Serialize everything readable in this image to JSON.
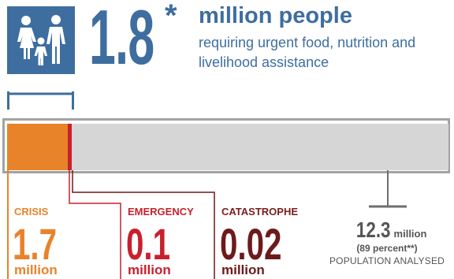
{
  "headline": {
    "number": "1.8",
    "asterisk": "*",
    "title": "million people",
    "subtitle": "requiring urgent food, nutrition and livelihood assistance"
  },
  "icon": {
    "name": "family-icon",
    "color": "#3E6EA0"
  },
  "bar": {
    "total_millions": 12.3,
    "segments": [
      {
        "phase": "crisis",
        "millions": 1.7,
        "color": "#E8832A"
      },
      {
        "phase": "emergency",
        "millions": 0.1,
        "color": "#C8202D"
      },
      {
        "phase": "catastrophe",
        "millions": 0.02,
        "color": "#6E1A1A"
      }
    ],
    "remainder_color": "#D6D6D6"
  },
  "phases": {
    "crisis": {
      "label": "CRISIS",
      "value": "1.7",
      "unit": "million",
      "color": "#E8832A"
    },
    "emergency": {
      "label": "EMERGENCY",
      "value": "0.1",
      "unit": "million",
      "color": "#C8202D"
    },
    "catastrophe": {
      "label": "CATASTROPHE",
      "value": "0.02",
      "unit": "million",
      "color": "#6E1A1A"
    }
  },
  "analysed": {
    "value": "12.3",
    "unit": "million",
    "percent": "(89 percent**)",
    "caption": "POPULATION ANALYSED"
  }
}
